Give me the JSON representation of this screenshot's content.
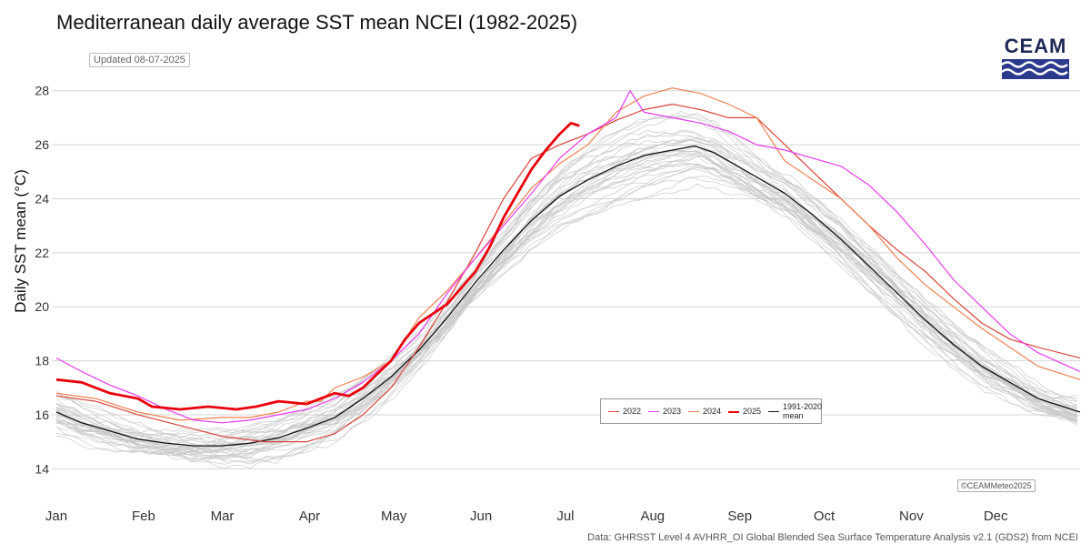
{
  "title": "Mediterranean daily average SST mean NCEI (1982-2025)",
  "updated": "Updated 08-07-2025",
  "logo": "CEAM",
  "copyright": "©CEAMMeteo2025",
  "source": "Data: GHRSST Level 4 AVHRR_OI Global Blended Sea Surface Temperature Analysis v2.1 (GDS2) from NCEI",
  "colors": {
    "y2022": "#d6453a",
    "y2023": "#e83cf0",
    "y2024": "#f08050",
    "y2025": "#e8000b",
    "mean": "#111111",
    "historical": "#c8c8c8",
    "logo": "#2b3a8c"
  },
  "chart_data": {
    "type": "line",
    "title": "Mediterranean daily average SST mean NCEI (1982-2025)",
    "xlabel": "",
    "ylabel": "Daily SST mean (°C)",
    "xlim": [
      1,
      365
    ],
    "ylim": [
      13,
      29
    ],
    "yticks": [
      14,
      16,
      18,
      20,
      22,
      24,
      26,
      28
    ],
    "xticks": [
      {
        "label": "Jan",
        "day": 1
      },
      {
        "label": "Feb",
        "day": 32
      },
      {
        "label": "Mar",
        "day": 60
      },
      {
        "label": "Apr",
        "day": 91
      },
      {
        "label": "May",
        "day": 121
      },
      {
        "label": "Jun",
        "day": 152
      },
      {
        "label": "Jul",
        "day": 182
      },
      {
        "label": "Aug",
        "day": 213
      },
      {
        "label": "Sep",
        "day": 244
      },
      {
        "label": "Oct",
        "day": 274
      },
      {
        "label": "Nov",
        "day": 305
      },
      {
        "label": "Dec",
        "day": 335
      }
    ],
    "legend_position": "bottom-center",
    "background_band": "historical years 1982-2021 shown as light grey lines, range approx 14.2-28.0 °C",
    "series": [
      {
        "name": "2022",
        "color": "#d6453a",
        "width": 1.2,
        "points": [
          [
            1,
            16.7
          ],
          [
            15,
            16.5
          ],
          [
            30,
            16.0
          ],
          [
            45,
            15.6
          ],
          [
            60,
            15.2
          ],
          [
            75,
            15.0
          ],
          [
            90,
            15.0
          ],
          [
            100,
            15.3
          ],
          [
            110,
            16.0
          ],
          [
            120,
            17.0
          ],
          [
            130,
            18.5
          ],
          [
            140,
            20.2
          ],
          [
            150,
            22.0
          ],
          [
            160,
            24.0
          ],
          [
            170,
            25.5
          ],
          [
            180,
            26.0
          ],
          [
            190,
            26.4
          ],
          [
            200,
            26.9
          ],
          [
            210,
            27.3
          ],
          [
            220,
            27.5
          ],
          [
            230,
            27.3
          ],
          [
            240,
            27.0
          ],
          [
            250,
            27.0
          ],
          [
            260,
            26.0
          ],
          [
            270,
            25.0
          ],
          [
            280,
            24.0
          ],
          [
            290,
            23.0
          ],
          [
            300,
            22.1
          ],
          [
            310,
            21.3
          ],
          [
            320,
            20.3
          ],
          [
            330,
            19.4
          ],
          [
            340,
            18.8
          ],
          [
            350,
            18.5
          ],
          [
            365,
            18.1
          ]
        ]
      },
      {
        "name": "2023",
        "color": "#e83cf0",
        "width": 1.2,
        "points": [
          [
            1,
            18.1
          ],
          [
            10,
            17.6
          ],
          [
            20,
            17.1
          ],
          [
            30,
            16.7
          ],
          [
            40,
            16.2
          ],
          [
            50,
            15.8
          ],
          [
            60,
            15.7
          ],
          [
            70,
            15.8
          ],
          [
            80,
            16.0
          ],
          [
            90,
            16.2
          ],
          [
            100,
            16.6
          ],
          [
            110,
            17.2
          ],
          [
            120,
            18.0
          ],
          [
            130,
            19.0
          ],
          [
            140,
            20.5
          ],
          [
            150,
            21.8
          ],
          [
            160,
            23.0
          ],
          [
            170,
            24.2
          ],
          [
            180,
            25.5
          ],
          [
            190,
            26.4
          ],
          [
            200,
            27.0
          ],
          [
            205,
            28.0
          ],
          [
            210,
            27.2
          ],
          [
            220,
            27.0
          ],
          [
            230,
            26.8
          ],
          [
            240,
            26.5
          ],
          [
            250,
            26.0
          ],
          [
            260,
            25.8
          ],
          [
            270,
            25.5
          ],
          [
            280,
            25.2
          ],
          [
            290,
            24.5
          ],
          [
            300,
            23.5
          ],
          [
            310,
            22.3
          ],
          [
            320,
            21.0
          ],
          [
            330,
            20.0
          ],
          [
            340,
            19.0
          ],
          [
            350,
            18.3
          ],
          [
            365,
            17.6
          ]
        ]
      },
      {
        "name": "2024",
        "color": "#f08050",
        "width": 1.2,
        "points": [
          [
            1,
            16.8
          ],
          [
            15,
            16.6
          ],
          [
            30,
            16.1
          ],
          [
            45,
            15.8
          ],
          [
            60,
            15.9
          ],
          [
            70,
            15.9
          ],
          [
            80,
            16.1
          ],
          [
            90,
            16.5
          ],
          [
            95,
            16.5
          ],
          [
            100,
            17.0
          ],
          [
            110,
            17.4
          ],
          [
            120,
            18.0
          ],
          [
            130,
            19.6
          ],
          [
            140,
            20.6
          ],
          [
            150,
            21.8
          ],
          [
            160,
            23.1
          ],
          [
            170,
            24.4
          ],
          [
            180,
            25.3
          ],
          [
            190,
            26.0
          ],
          [
            200,
            27.2
          ],
          [
            210,
            27.8
          ],
          [
            220,
            28.1
          ],
          [
            230,
            27.9
          ],
          [
            240,
            27.5
          ],
          [
            250,
            27.0
          ],
          [
            260,
            25.4
          ],
          [
            270,
            24.7
          ],
          [
            280,
            24.0
          ],
          [
            290,
            23.0
          ],
          [
            300,
            21.8
          ],
          [
            310,
            20.8
          ],
          [
            320,
            20.0
          ],
          [
            330,
            19.2
          ],
          [
            340,
            18.5
          ],
          [
            350,
            17.8
          ],
          [
            365,
            17.3
          ]
        ]
      },
      {
        "name": "2025",
        "color": "#e8000b",
        "width": 2.8,
        "points": [
          [
            1,
            17.3
          ],
          [
            10,
            17.2
          ],
          [
            15,
            17.0
          ],
          [
            20,
            16.8
          ],
          [
            30,
            16.6
          ],
          [
            35,
            16.3
          ],
          [
            45,
            16.2
          ],
          [
            55,
            16.3
          ],
          [
            65,
            16.2
          ],
          [
            72,
            16.3
          ],
          [
            80,
            16.5
          ],
          [
            90,
            16.4
          ],
          [
            95,
            16.6
          ],
          [
            100,
            16.8
          ],
          [
            105,
            16.7
          ],
          [
            110,
            17.0
          ],
          [
            115,
            17.5
          ],
          [
            120,
            18.0
          ],
          [
            125,
            18.8
          ],
          [
            130,
            19.4
          ],
          [
            140,
            20.1
          ],
          [
            150,
            21.3
          ],
          [
            155,
            22.2
          ],
          [
            160,
            23.3
          ],
          [
            165,
            24.2
          ],
          [
            170,
            25.1
          ],
          [
            175,
            25.8
          ],
          [
            180,
            26.4
          ],
          [
            184,
            26.8
          ],
          [
            187,
            26.7
          ]
        ]
      },
      {
        "name": "1991-2020 mean",
        "color": "#111111",
        "width": 1.3,
        "points": [
          [
            1,
            16.1
          ],
          [
            10,
            15.7
          ],
          [
            20,
            15.4
          ],
          [
            30,
            15.1
          ],
          [
            40,
            14.95
          ],
          [
            50,
            14.85
          ],
          [
            60,
            14.85
          ],
          [
            70,
            14.95
          ],
          [
            80,
            15.15
          ],
          [
            90,
            15.5
          ],
          [
            100,
            15.9
          ],
          [
            110,
            16.6
          ],
          [
            120,
            17.4
          ],
          [
            130,
            18.4
          ],
          [
            140,
            19.6
          ],
          [
            150,
            20.9
          ],
          [
            160,
            22.1
          ],
          [
            170,
            23.2
          ],
          [
            180,
            24.1
          ],
          [
            190,
            24.7
          ],
          [
            200,
            25.2
          ],
          [
            210,
            25.6
          ],
          [
            220,
            25.8
          ],
          [
            228,
            25.95
          ],
          [
            235,
            25.7
          ],
          [
            240,
            25.4
          ],
          [
            250,
            24.8
          ],
          [
            260,
            24.2
          ],
          [
            270,
            23.4
          ],
          [
            280,
            22.5
          ],
          [
            290,
            21.5
          ],
          [
            300,
            20.5
          ],
          [
            310,
            19.5
          ],
          [
            320,
            18.6
          ],
          [
            330,
            17.8
          ],
          [
            340,
            17.2
          ],
          [
            350,
            16.6
          ],
          [
            365,
            16.1
          ]
        ]
      }
    ],
    "legend": [
      {
        "label": "2022",
        "color": "#d6453a",
        "width": 1
      },
      {
        "label": "2023",
        "color": "#e83cf0",
        "width": 1
      },
      {
        "label": "2024",
        "color": "#f08050",
        "width": 1
      },
      {
        "label": "2025",
        "color": "#e8000b",
        "width": 2.5
      },
      {
        "label": "1991-2020 mean",
        "color": "#111111",
        "width": 1
      }
    ]
  }
}
